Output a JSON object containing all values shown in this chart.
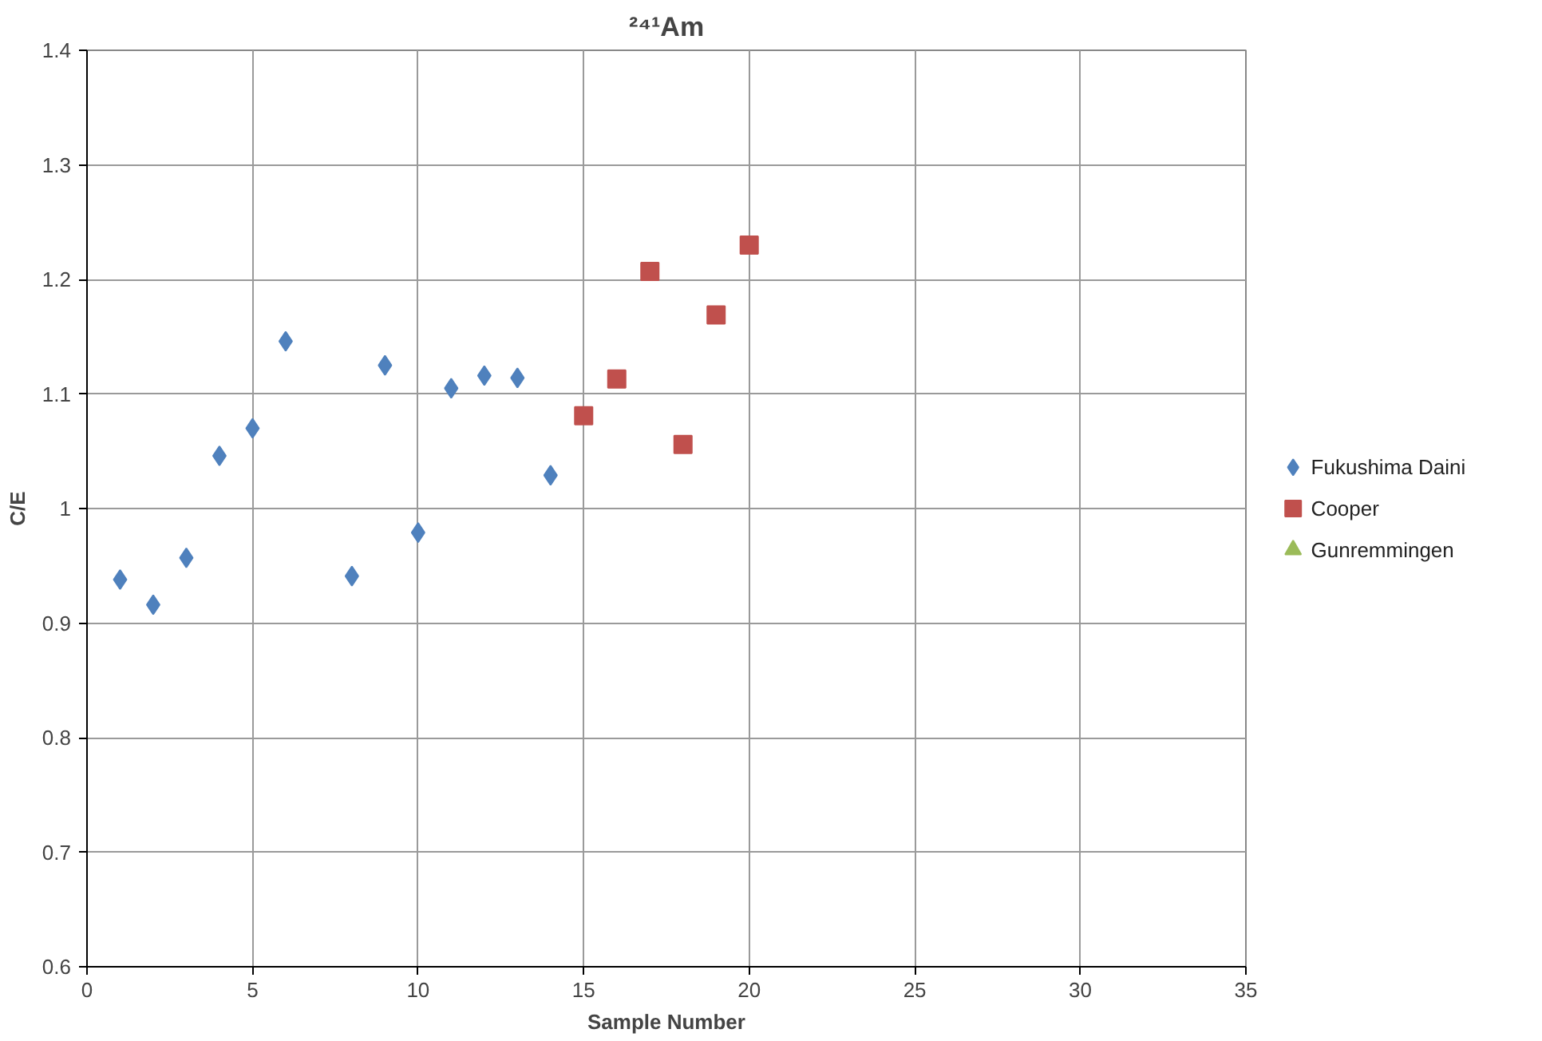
{
  "chart_data": {
    "type": "scatter",
    "title": "²⁴¹Am",
    "xlabel": "Sample Number",
    "ylabel": "C/E",
    "xlim": [
      0,
      35
    ],
    "xticks": [
      0,
      5,
      10,
      15,
      20,
      25,
      30,
      35
    ],
    "ylim": [
      0.6,
      1.4
    ],
    "yticks": [
      0.6,
      0.7,
      0.8,
      0.9,
      1,
      1.1,
      1.2,
      1.3,
      1.4
    ],
    "grid": true,
    "legend": "right",
    "series": [
      {
        "name": "Fukushima Daini",
        "color": "#4f81bd",
        "marker": "diamond",
        "x": [
          1,
          2,
          3,
          4,
          5,
          6,
          8,
          9,
          10,
          11,
          12,
          13,
          14
        ],
        "values": [
          0.938,
          0.916,
          0.957,
          1.046,
          1.07,
          1.146,
          0.941,
          1.125,
          0.979,
          1.105,
          1.116,
          1.114,
          1.029
        ]
      },
      {
        "name": "Cooper",
        "color": "#c0504d",
        "marker": "square",
        "x": [
          15,
          16,
          17,
          18,
          19,
          20
        ],
        "values": [
          1.081,
          1.113,
          1.207,
          1.056,
          1.169,
          1.23
        ]
      },
      {
        "name": "Gunremmingen",
        "color": "#9bbb59",
        "marker": "triangle"
      }
    ]
  }
}
